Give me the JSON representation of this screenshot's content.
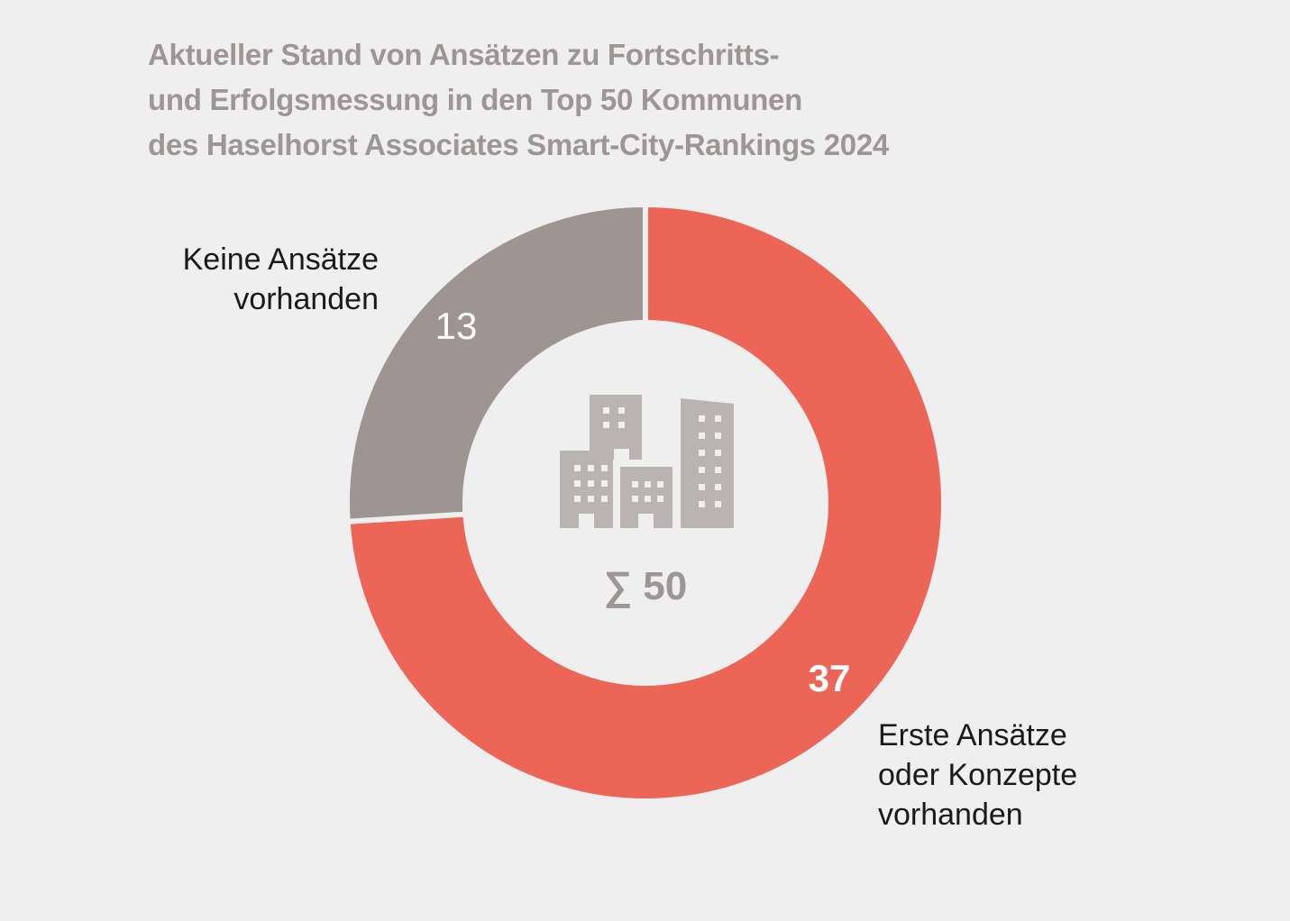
{
  "chart_data": {
    "type": "pie",
    "title": "Aktueller Stand von Ansätzen zu Fortschritts- und Erfolgsmessung in den Top 50 Kommunen des Haselhorst Associates Smart-City-Rankings 2024",
    "title_lines": [
      "Aktueller Stand von Ansätzen zu Fortschritts-",
      "und Erfolgsmessung in den Top 50 Kommunen",
      "des Haselhorst Associates Smart-City-Rankings 2024"
    ],
    "categories": [
      "Erste Ansätze oder Konzepte vorhanden",
      "Keine Ansätze vorhanden"
    ],
    "values": [
      37,
      13
    ],
    "value_labels": [
      "37",
      "13"
    ],
    "colors": [
      "#ec6557",
      "#9e9593"
    ],
    "total_label": "∑ 50",
    "label_lines": {
      "erste": [
        "Erste Ansätze",
        "oder Konzepte",
        "vorhanden"
      ],
      "keine": [
        "Keine Ansätze",
        "vorhanden"
      ]
    },
    "center_icon": "city-buildings-icon",
    "icon_color": "#b9b3b1",
    "background": "#efefef"
  }
}
